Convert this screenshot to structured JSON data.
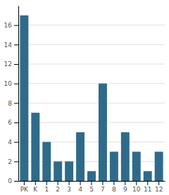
{
  "chart_data": {
    "type": "bar",
    "categories": [
      "PK",
      "K",
      "1",
      "2",
      "3",
      "4",
      "5",
      "7",
      "8",
      "9",
      "10",
      "11",
      "12"
    ],
    "values": [
      17,
      7,
      4,
      2,
      2,
      5,
      1,
      10,
      3,
      5,
      3,
      1,
      3
    ],
    "color": "#2e6b8a",
    "ylim": [
      0,
      18
    ],
    "yticks": [
      0,
      2,
      4,
      6,
      8,
      10,
      12,
      14,
      16
    ],
    "grid": true
  }
}
